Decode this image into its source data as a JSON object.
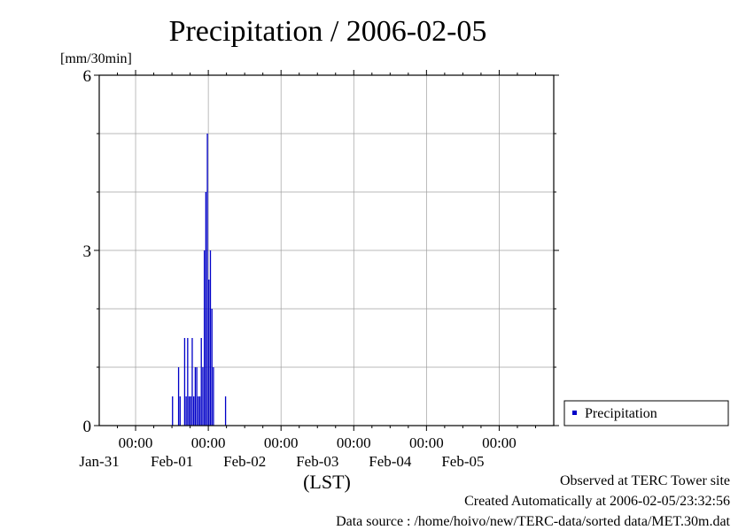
{
  "chart_data": {
    "type": "bar",
    "title": "Precipitation / 2006-02-05",
    "ylabel": "[mm/30min]",
    "xlabel": "(LST)",
    "ylim": [
      0,
      6
    ],
    "yticks": [
      "0",
      "3",
      "6"
    ],
    "xlim": [
      "2006-01-30 12:00",
      "2006-02-05 18:00"
    ],
    "x_day_ticks": [
      {
        "time": "00:00",
        "date": "Jan-31"
      },
      {
        "time": "00:00",
        "date": "Feb-01"
      },
      {
        "time": "00:00",
        "date": "Feb-02"
      },
      {
        "time": "00:00",
        "date": "Feb-03"
      },
      {
        "time": "00:00",
        "date": "Feb-04"
      },
      {
        "time": "00:00",
        "date": "Feb-05"
      }
    ],
    "grid": true,
    "legend_position": "right",
    "series": [
      {
        "name": "Precipitation",
        "color": "#0000c8",
        "points": [
          {
            "x": "2006-01-31 12:30",
            "y": 0.5
          },
          {
            "x": "2006-01-31 14:30",
            "y": 1.0
          },
          {
            "x": "2006-01-31 15:00",
            "y": 0.5
          },
          {
            "x": "2006-01-31 16:30",
            "y": 1.5
          },
          {
            "x": "2006-01-31 17:00",
            "y": 0.5
          },
          {
            "x": "2006-01-31 17:30",
            "y": 1.5
          },
          {
            "x": "2006-01-31 18:00",
            "y": 0.5
          },
          {
            "x": "2006-01-31 18:30",
            "y": 0.5
          },
          {
            "x": "2006-01-31 19:00",
            "y": 1.5
          },
          {
            "x": "2006-01-31 19:30",
            "y": 0.5
          },
          {
            "x": "2006-01-31 20:00",
            "y": 1.0
          },
          {
            "x": "2006-01-31 20:30",
            "y": 1.0
          },
          {
            "x": "2006-01-31 21:00",
            "y": 0.5
          },
          {
            "x": "2006-01-31 21:30",
            "y": 0.5
          },
          {
            "x": "2006-01-31 22:00",
            "y": 1.5
          },
          {
            "x": "2006-01-31 22:30",
            "y": 1.0
          },
          {
            "x": "2006-01-31 23:00",
            "y": 3.0
          },
          {
            "x": "2006-01-31 23:30",
            "y": 4.0
          },
          {
            "x": "2006-02-01 00:00",
            "y": 5.0
          },
          {
            "x": "2006-02-01 00:30",
            "y": 2.5
          },
          {
            "x": "2006-02-01 01:00",
            "y": 3.0
          },
          {
            "x": "2006-02-01 01:30",
            "y": 2.0
          },
          {
            "x": "2006-02-01 02:00",
            "y": 1.0
          },
          {
            "x": "2006-02-01 06:00",
            "y": 0.5
          }
        ]
      }
    ]
  },
  "footer": {
    "line1": "Observed at TERC Tower site",
    "line2": "Created Automatically at 2006-02-05/23:32:56",
    "line3": "Data source : /home/hoivo/new/TERC-data/sorted data/MET.30m.dat"
  }
}
